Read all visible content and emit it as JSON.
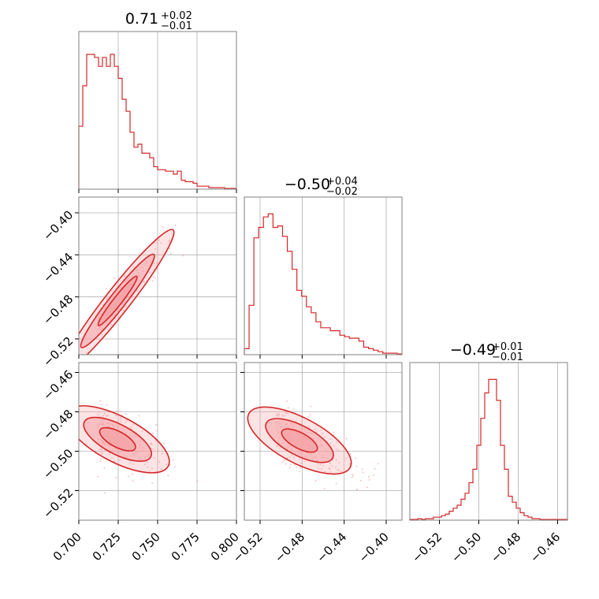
{
  "chart_data": {
    "type": "corner",
    "color": "#d62728",
    "fill_color": "#f4a3a5",
    "grid": true,
    "parameters": [
      {
        "median": "0.71",
        "upper": "+0.02",
        "lower": "−0.01",
        "range": [
          0.7,
          0.8
        ],
        "ticks": [
          0.7,
          0.725,
          0.75,
          0.775,
          0.8
        ],
        "tick_labels": [
          "0.700",
          "0.725",
          "0.750",
          "0.775",
          "0.800"
        ],
        "histogram": [
          0.42,
          0.69,
          0.9,
          0.9,
          0.88,
          0.82,
          0.88,
          0.82,
          0.9,
          0.82,
          0.74,
          0.6,
          0.52,
          0.38,
          0.28,
          0.3,
          0.24,
          0.24,
          0.21,
          0.15,
          0.13,
          0.13,
          0.12,
          0.12,
          0.1,
          0.12,
          0.06,
          0.05,
          0.05,
          0.04,
          0.02,
          0.02,
          0.02,
          0.01,
          0.01,
          0.01,
          0.01,
          0.005,
          0.005,
          0.005
        ]
      },
      {
        "median": "−0.50",
        "upper": "+0.04",
        "lower": "−0.02",
        "range": [
          -0.535,
          -0.385
        ],
        "ticks": [
          -0.52,
          -0.48,
          -0.44,
          -0.4
        ],
        "tick_labels": [
          "−0.52",
          "−0.48",
          "−0.44",
          "−0.40"
        ],
        "histogram": [
          0.04,
          0.33,
          0.78,
          0.85,
          0.92,
          0.94,
          0.85,
          0.86,
          0.79,
          0.69,
          0.57,
          0.43,
          0.39,
          0.32,
          0.28,
          0.22,
          0.18,
          0.18,
          0.16,
          0.16,
          0.13,
          0.12,
          0.11,
          0.11,
          0.09,
          0.05,
          0.04,
          0.03,
          0.02,
          0.01,
          0.01,
          0.01,
          0.005
        ]
      },
      {
        "median": "−0.49",
        "upper": "+0.01",
        "lower": "−0.01",
        "range": [
          -0.535,
          -0.455
        ],
        "ticks": [
          -0.52,
          -0.5,
          -0.48,
          -0.46
        ],
        "tick_labels": [
          "−0.52",
          "−0.50",
          "−0.48",
          "−0.46"
        ],
        "histogram": [
          0.005,
          0.005,
          0.01,
          0.005,
          0.01,
          0.01,
          0.02,
          0.02,
          0.03,
          0.04,
          0.06,
          0.08,
          0.1,
          0.14,
          0.18,
          0.25,
          0.34,
          0.5,
          0.68,
          0.85,
          0.94,
          0.94,
          0.8,
          0.5,
          0.34,
          0.16,
          0.12,
          0.08,
          0.05,
          0.03,
          0.02,
          0.01,
          0.01,
          0.005,
          0.005,
          0.005,
          0.005,
          0.005,
          0.005,
          0.005
        ]
      }
    ]
  }
}
